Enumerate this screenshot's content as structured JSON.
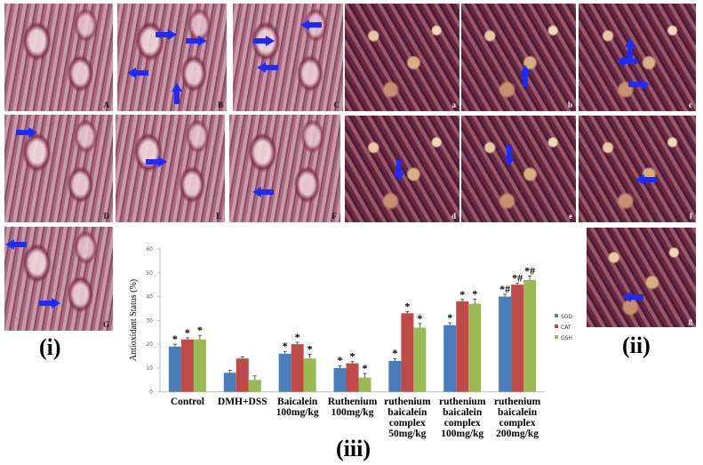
{
  "panel_group_labels": {
    "i": "(i)",
    "ii": "(ii)",
    "iii": "(iii)"
  },
  "panels_i": [
    "A",
    "B",
    "C",
    "D",
    "E",
    "F",
    "G"
  ],
  "panels_ii": [
    "a",
    "b",
    "c",
    "d",
    "e",
    "f",
    "g"
  ],
  "colors": {
    "SOD": "#4a7ebb",
    "CAT": "#be4b48",
    "GSH": "#98b954",
    "arrow": "#1e2bff"
  },
  "chart_data": {
    "type": "bar",
    "ylabel": "Antioxidant Status (%)",
    "xlabel": "",
    "ylim": [
      0,
      60
    ],
    "yticks": [
      "0",
      "10",
      "20",
      "30",
      "40",
      "50",
      "60"
    ],
    "legend_position": "right",
    "categories": [
      [
        "Control"
      ],
      [
        "DMH+DSS"
      ],
      [
        "Baicalein",
        "100mg/kg"
      ],
      [
        "Ruthenium",
        "100mg/kg"
      ],
      [
        "ruthenium",
        "baicalein",
        "complex",
        "50mg/kg"
      ],
      [
        "ruthenium",
        "baicalein",
        "complex",
        "100mg/kg"
      ],
      [
        "ruthenium",
        "baicalein",
        "complex",
        "200mg/kg"
      ]
    ],
    "series": [
      {
        "name": "SOD",
        "values": [
          19,
          8,
          16,
          10,
          13,
          28,
          40
        ],
        "errors": [
          1,
          1,
          1,
          1,
          1,
          1,
          1
        ],
        "annotations": [
          "*",
          "",
          "*",
          "*",
          "*",
          "*",
          "*#"
        ]
      },
      {
        "name": "CAT",
        "values": [
          22,
          14,
          20,
          12,
          33,
          38,
          45
        ],
        "errors": [
          0.7,
          0.7,
          0.8,
          0.7,
          0.7,
          0.8,
          0.7
        ],
        "annotations": [
          "*",
          "",
          "*",
          "*",
          "*",
          "*",
          "*#"
        ]
      },
      {
        "name": "GSH",
        "values": [
          22,
          5,
          14,
          6,
          27,
          37,
          47
        ],
        "errors": [
          1.7,
          1.7,
          1.8,
          1.7,
          1.7,
          1.9,
          1.6
        ],
        "annotations": [
          "*",
          "",
          "*",
          "*",
          "*",
          "*",
          "*#"
        ]
      }
    ]
  }
}
